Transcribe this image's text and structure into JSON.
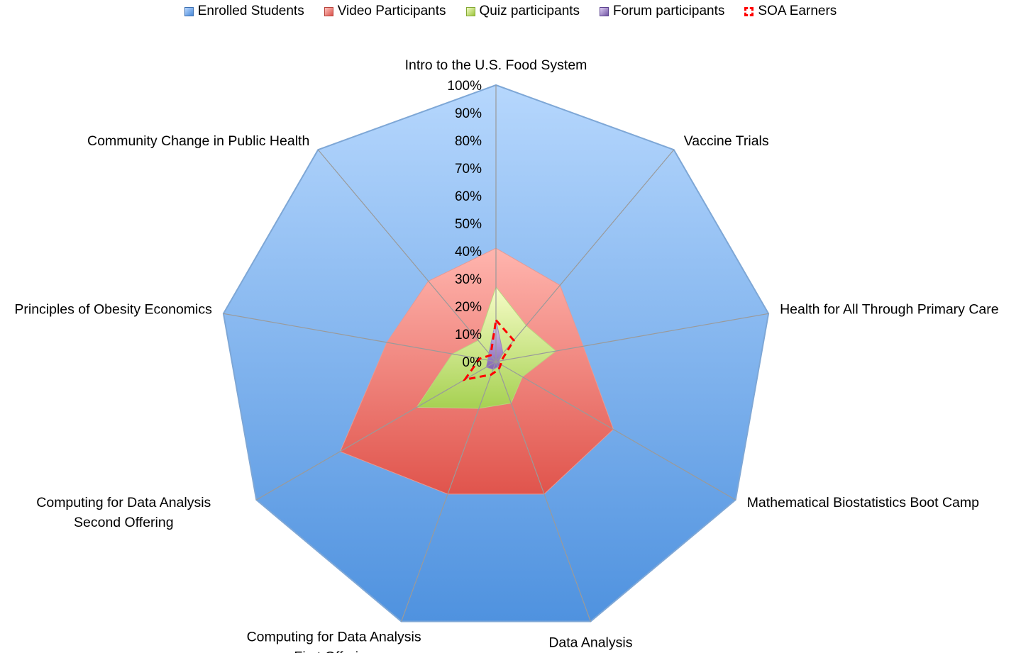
{
  "chart_data": {
    "type": "radar",
    "categories": [
      "Intro to the U.S. Food System",
      "Vaccine Trials",
      "Health for All Through Primary Care",
      "Mathematical Biostatistics Boot Camp",
      "Data Analysis",
      "Computing for Data Analysis First Offering",
      "Computing for Data Analysis Second Offering",
      "Principles of Obesity Economics",
      "Community Change in Public Health"
    ],
    "series": [
      {
        "name": "Enrolled Students",
        "values": [
          100,
          100,
          100,
          100,
          100,
          100,
          100,
          100,
          100
        ],
        "color": "#6fa3ea",
        "style": "filled"
      },
      {
        "name": "Video Participants",
        "values": [
          41,
          36,
          32,
          49,
          51,
          51,
          65,
          40,
          38
        ],
        "color": "#ef7f79",
        "style": "filled"
      },
      {
        "name": "Quiz participants",
        "values": [
          27,
          17,
          22,
          11,
          16,
          18,
          33,
          16,
          10
        ],
        "color": "#c6e27e",
        "style": "filled"
      },
      {
        "name": "Forum participants",
        "values": [
          15,
          4,
          1,
          2,
          2,
          3,
          4,
          3,
          4
        ],
        "color": "#9a7fc0",
        "style": "filled"
      },
      {
        "name": "SOA Earners",
        "values": [
          15,
          10,
          2,
          2,
          3,
          5,
          13,
          6,
          3
        ],
        "color": "#ff0000",
        "style": "dashed-line"
      }
    ],
    "radial_ticks": [
      "0%",
      "10%",
      "20%",
      "30%",
      "40%",
      "50%",
      "60%",
      "70%",
      "80%",
      "90%",
      "100%"
    ],
    "rlim": [
      0,
      100
    ],
    "legend_position": "top",
    "grid": true
  }
}
